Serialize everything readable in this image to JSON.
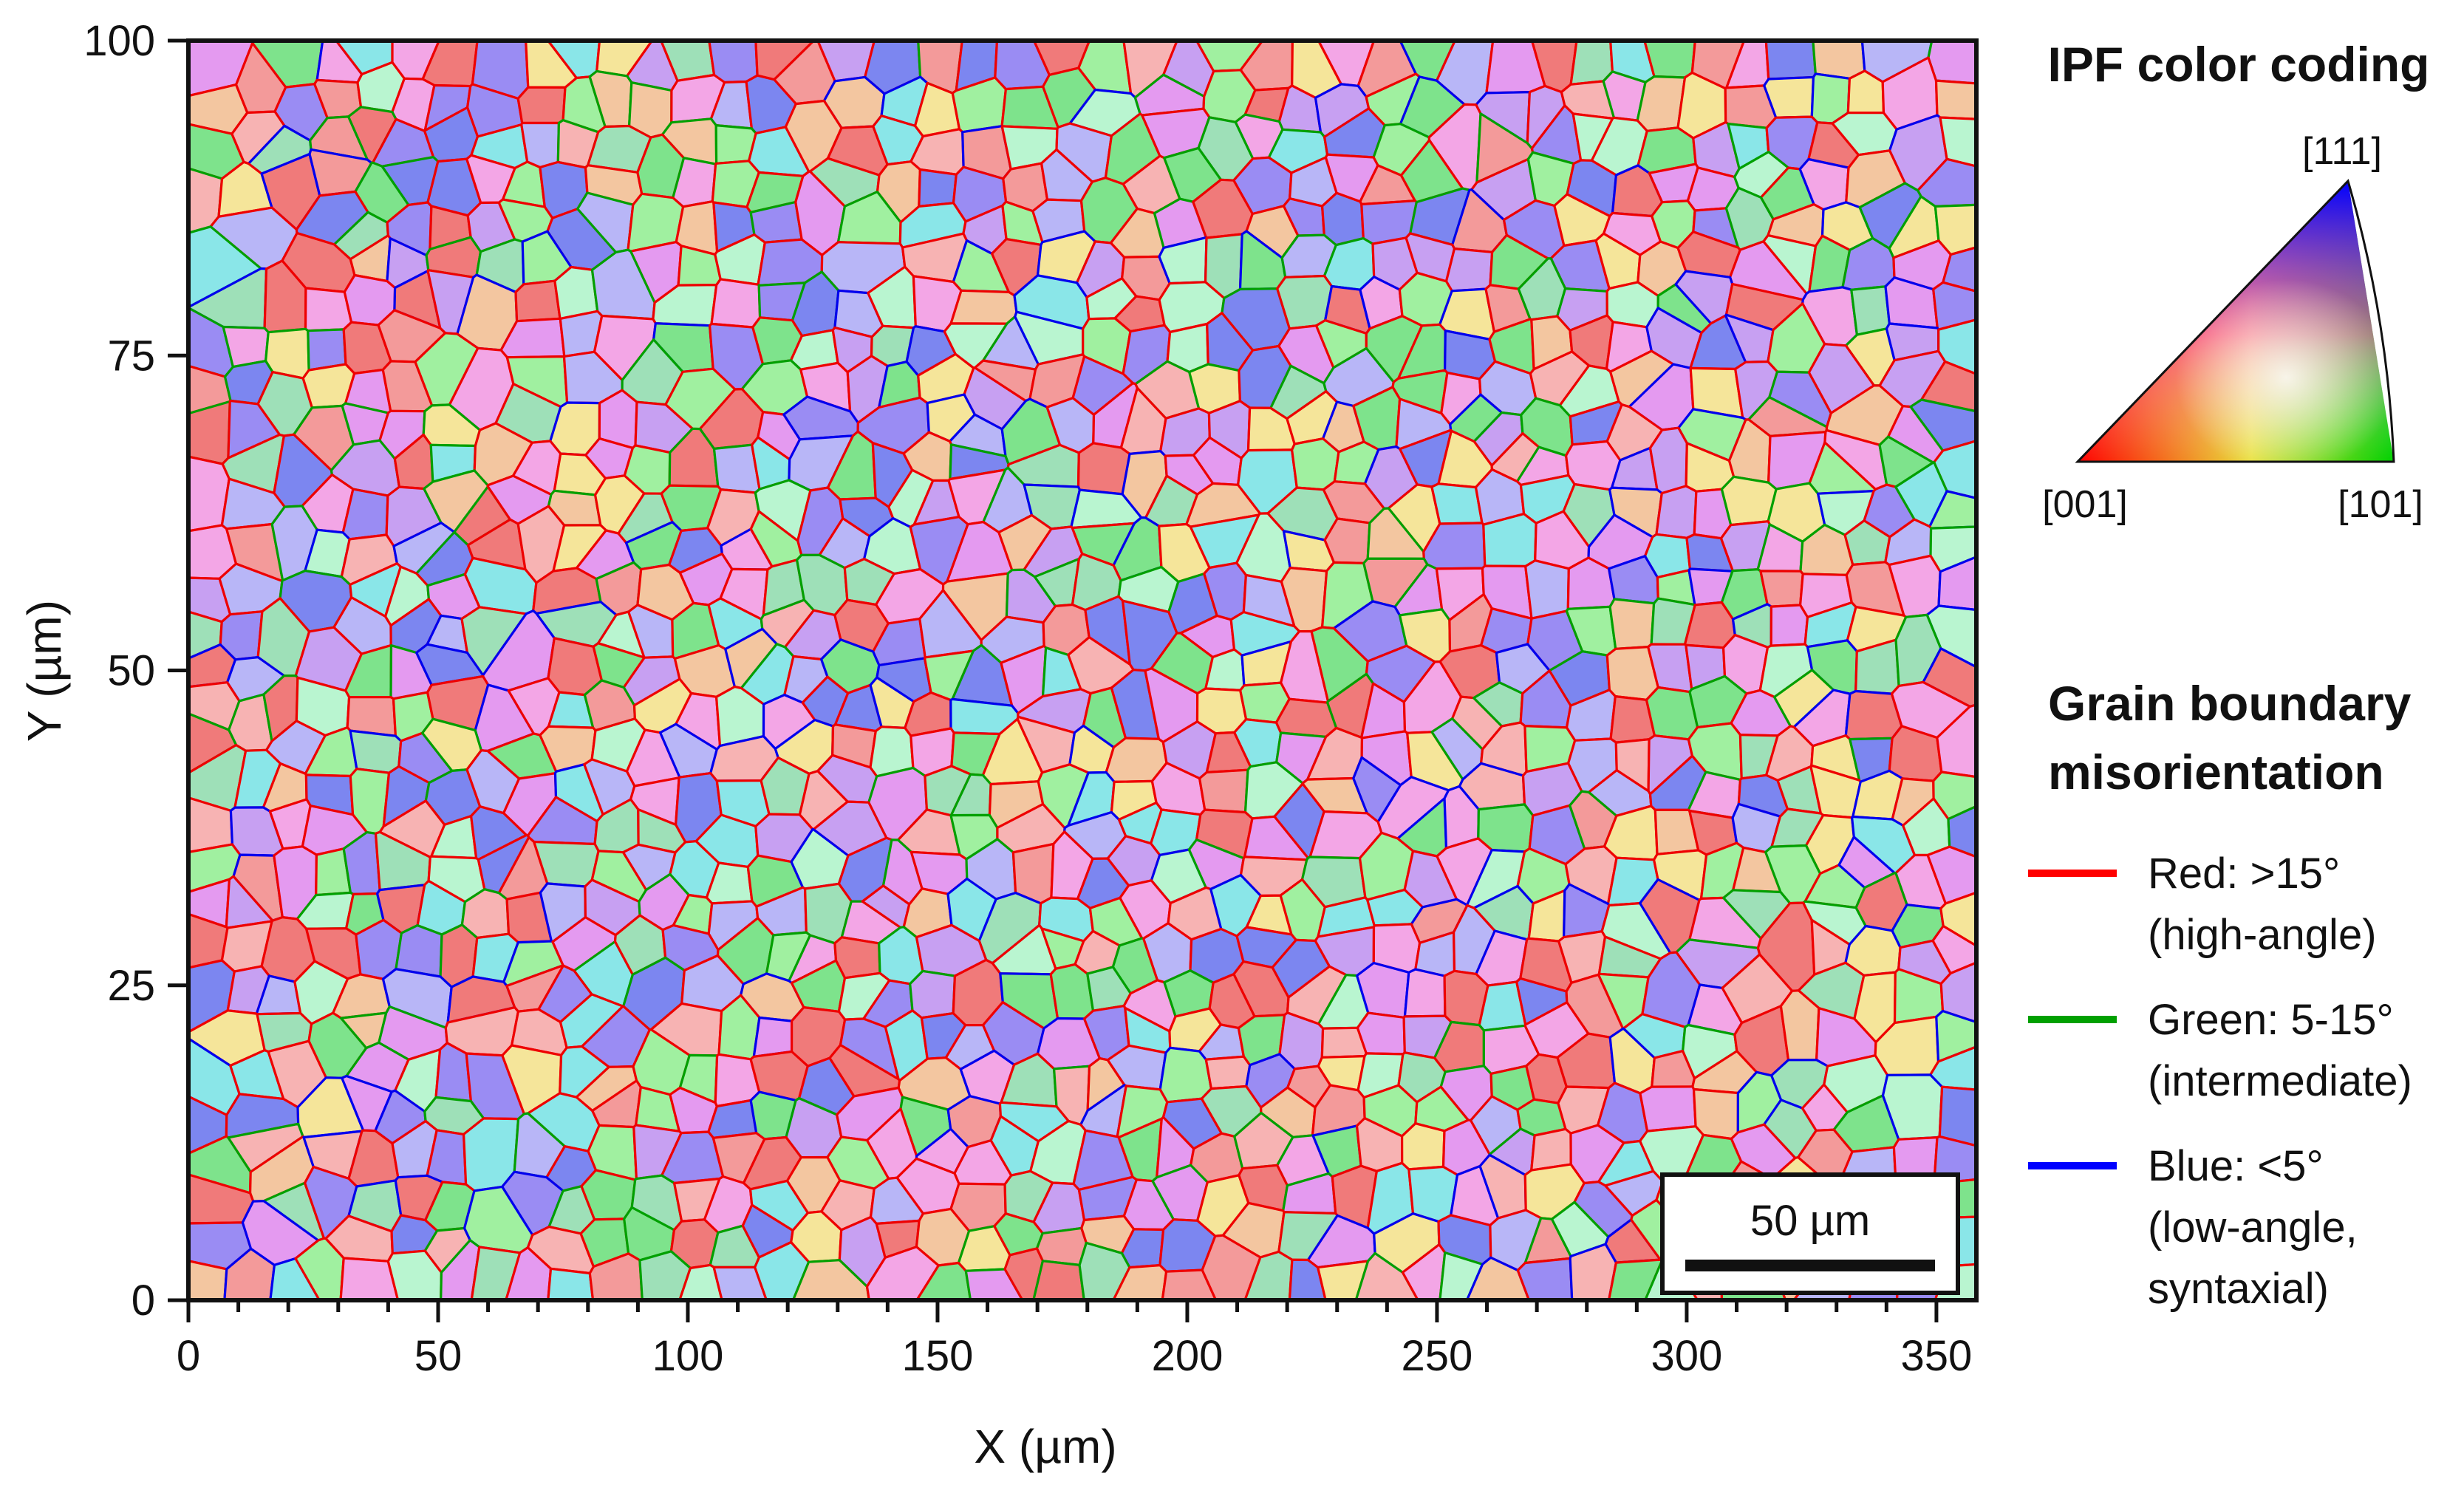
{
  "chart_data": {
    "type": "heatmap",
    "title": "",
    "xlabel": "X (µm)",
    "ylabel": "Y (µm)",
    "xlim": [
      0,
      358
    ],
    "ylim": [
      0,
      100
    ],
    "x_ticks": [
      0,
      50,
      100,
      150,
      200,
      250,
      300,
      350
    ],
    "y_ticks": [
      0,
      25,
      50,
      75,
      100
    ],
    "x_tick_labels": [
      "0",
      "50",
      "100",
      "150",
      "200",
      "250",
      "300",
      "350"
    ],
    "y_tick_labels": [
      "0",
      "25",
      "50",
      "75",
      "100"
    ],
    "minor_x_step": 10,
    "grid": false,
    "scale_bar": {
      "label": "50 µm",
      "length": 50
    },
    "ipf_legend": {
      "title": "IPF color coding",
      "corners": [
        "[001]",
        "[101]",
        "[111]"
      ],
      "corner_colors": [
        "#ff0000",
        "#00d000",
        "#0000ff"
      ]
    },
    "boundary_legend": {
      "title_lines": [
        "Grain boundary",
        "misorientation"
      ],
      "placement": "right",
      "entries": [
        {
          "color": "#ff0000",
          "lines": [
            "Red: >15°",
            "(high-angle)"
          ]
        },
        {
          "color": "#00a000",
          "lines": [
            "Green: 5-15°",
            "(intermediate)"
          ]
        },
        {
          "color": "#0000ff",
          "lines": [
            "Blue: <5°",
            "(low-angle,",
            "syntaxial)"
          ]
        }
      ]
    }
  },
  "grain_palette": [
    "#f07a7a",
    "#f39a9a",
    "#a0f0a0",
    "#7ee38c",
    "#9a8cf3",
    "#7c86f0",
    "#c7a0f2",
    "#f3a6e6",
    "#b9f5d0",
    "#f5e59a",
    "#f3c6a0",
    "#8ae6e8",
    "#e49af0",
    "#b8b6f7",
    "#f7b3b3",
    "#9ee0b8"
  ],
  "boundary_colors": [
    "#ee0000",
    "#00a000",
    "#0000ee"
  ]
}
